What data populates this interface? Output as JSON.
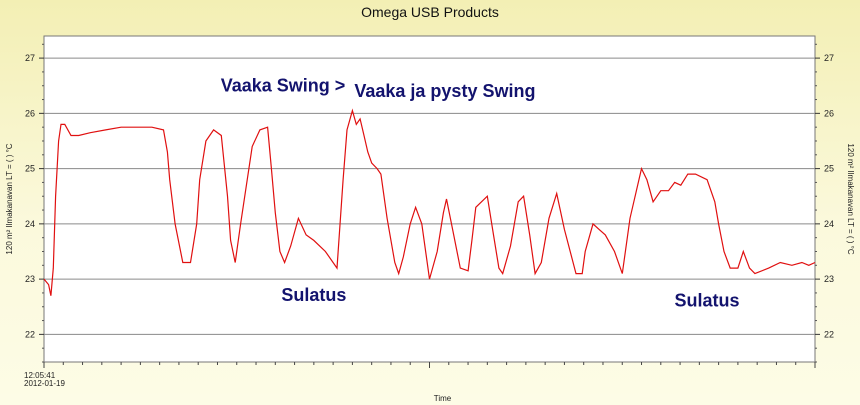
{
  "chart_data": {
    "type": "line",
    "title": "Omega USB Products",
    "xlabel": "Time",
    "ylabel": "120 m² Ilmakanavan LT = ( ) °C",
    "ylabel_right": "120 m² Ilmakanavan LT = ( ) °C",
    "x_start_label": [
      "12:05:41",
      "2012-01-19"
    ],
    "ylim": [
      21.5,
      27.4
    ],
    "yticks": [
      22,
      23,
      24,
      25,
      26,
      27
    ],
    "grid": true,
    "line_color": "#e01010",
    "annotations": [
      {
        "text": "Vaaka Swing >",
        "x": 0.31,
        "y": 26.4
      },
      {
        "text": "Vaaka ja pysty Swing",
        "x": 0.52,
        "y": 26.3
      },
      {
        "text": "Sulatus",
        "x": 0.35,
        "y": 22.6
      },
      {
        "text": "Sulatus",
        "x": 0.86,
        "y": 22.5
      }
    ],
    "series": [
      {
        "x": [
          0.0,
          0.006,
          0.009,
          0.012,
          0.015,
          0.019,
          0.022,
          0.027,
          0.035,
          0.045,
          0.06,
          0.08,
          0.1,
          0.12,
          0.14,
          0.155,
          0.16,
          0.163,
          0.17,
          0.18,
          0.19,
          0.198,
          0.202,
          0.21,
          0.22,
          0.23,
          0.238,
          0.242,
          0.248,
          0.255,
          0.27,
          0.28,
          0.29,
          0.295,
          0.3,
          0.306,
          0.312,
          0.32,
          0.33,
          0.34,
          0.35,
          0.365,
          0.38,
          0.388,
          0.393,
          0.4,
          0.405,
          0.41,
          0.415,
          0.42,
          0.425,
          0.432,
          0.437,
          0.445,
          0.455,
          0.46,
          0.466,
          0.475,
          0.482,
          0.49,
          0.5,
          0.51,
          0.518,
          0.522,
          0.53,
          0.54,
          0.55,
          0.555,
          0.56,
          0.575,
          0.583,
          0.59,
          0.595,
          0.605,
          0.615,
          0.622,
          0.63,
          0.637,
          0.645,
          0.655,
          0.665,
          0.675,
          0.69,
          0.698,
          0.702,
          0.712,
          0.72,
          0.728,
          0.74,
          0.75,
          0.76,
          0.775,
          0.782,
          0.79,
          0.8,
          0.81,
          0.818,
          0.826,
          0.835,
          0.845,
          0.86,
          0.87,
          0.875,
          0.882,
          0.89,
          0.9,
          0.907,
          0.915,
          0.922,
          0.94,
          0.955,
          0.97,
          0.983,
          0.992,
          1.0
        ],
        "y": [
          23.0,
          22.9,
          22.7,
          23.2,
          24.5,
          25.5,
          25.8,
          25.8,
          25.6,
          25.6,
          25.65,
          25.7,
          25.75,
          25.75,
          25.75,
          25.7,
          25.3,
          24.8,
          24.0,
          23.3,
          23.3,
          24.0,
          24.8,
          25.5,
          25.7,
          25.6,
          24.5,
          23.7,
          23.3,
          24.0,
          25.4,
          25.7,
          25.75,
          25.0,
          24.2,
          23.5,
          23.3,
          23.6,
          24.1,
          23.8,
          23.7,
          23.5,
          23.2,
          24.8,
          25.7,
          26.05,
          25.8,
          25.9,
          25.6,
          25.3,
          25.1,
          25.0,
          24.9,
          24.1,
          23.3,
          23.1,
          23.4,
          24.0,
          24.3,
          24.0,
          23.0,
          23.5,
          24.2,
          24.45,
          23.9,
          23.2,
          23.15,
          23.7,
          24.3,
          24.5,
          23.8,
          23.2,
          23.1,
          23.6,
          24.4,
          24.5,
          23.8,
          23.1,
          23.3,
          24.1,
          24.55,
          23.9,
          23.1,
          23.1,
          23.5,
          24.0,
          23.9,
          23.8,
          23.5,
          23.1,
          24.1,
          25.0,
          24.8,
          24.4,
          24.6,
          24.6,
          24.75,
          24.7,
          24.9,
          24.9,
          24.8,
          24.4,
          24.0,
          23.5,
          23.2,
          23.2,
          23.5,
          23.2,
          23.1,
          23.2,
          23.3,
          23.25,
          23.3,
          23.25,
          23.3
        ]
      }
    ]
  }
}
